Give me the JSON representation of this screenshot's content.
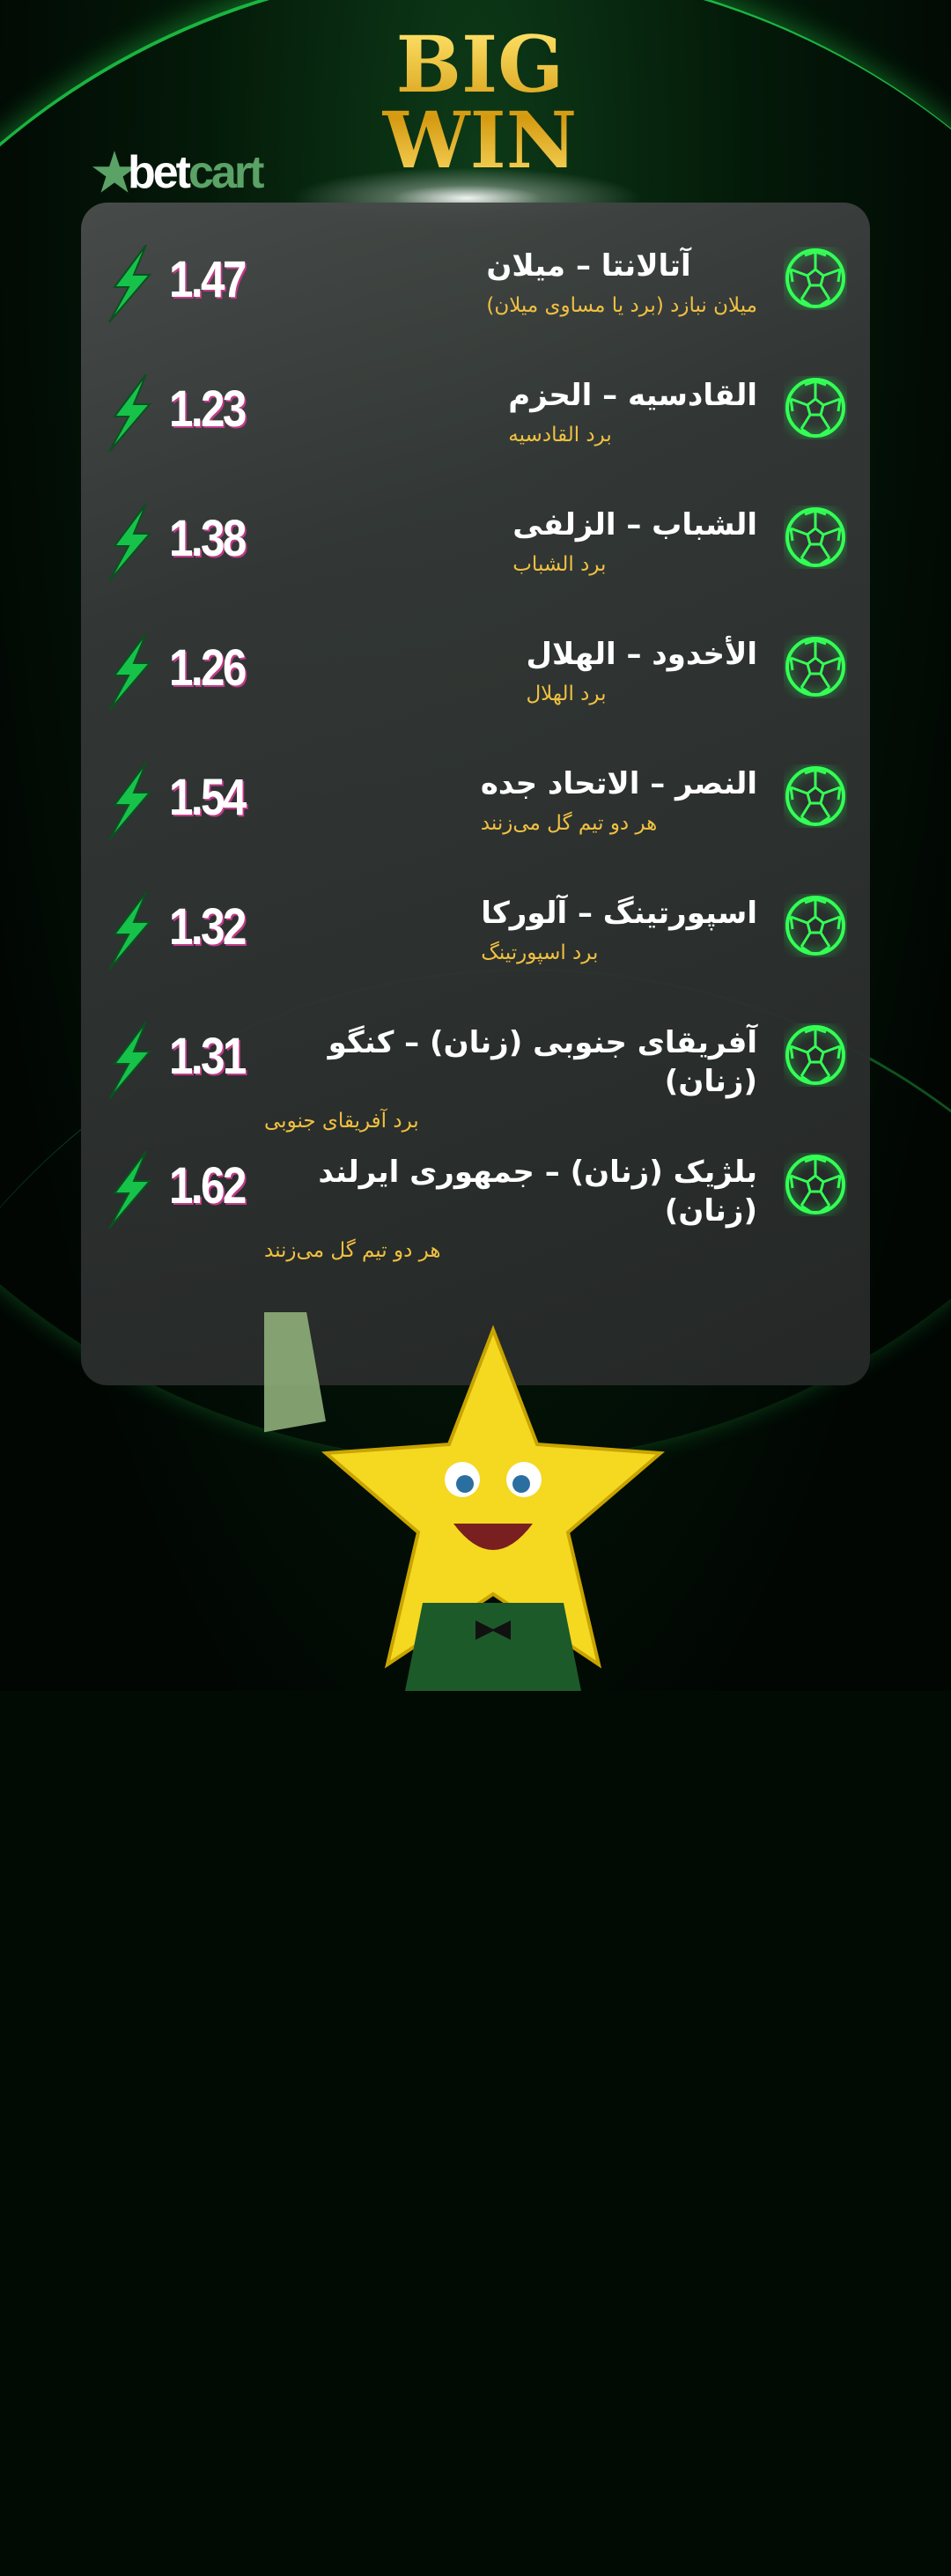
{
  "brand": {
    "logo": "betcart",
    "title_line1": "BIG",
    "title_line2": "WIN"
  },
  "colors": {
    "accent_green": "#1fd14a",
    "gold": "#f0c040",
    "card": "#343837"
  },
  "matches": [
    {
      "teams": "آتالانتا – میلان",
      "pick": "میلان نبازد (برد یا مساوی میلان)",
      "odds": "1.47"
    },
    {
      "teams": "القادسیه – الحزم",
      "pick": "برد القادسیه",
      "odds": "1.23"
    },
    {
      "teams": "الشباب – الزلفی",
      "pick": "برد الشباب",
      "odds": "1.38"
    },
    {
      "teams": "الأخدود – الهلال",
      "pick": "برد الهلال",
      "odds": "1.26"
    },
    {
      "teams": "النصر – الاتحاد جده",
      "pick": "هر دو تیم گل می‌زنند",
      "odds": "1.54"
    },
    {
      "teams": "اسپورتینگ – آلورکا",
      "pick": "برد اسپورتینگ",
      "odds": "1.32"
    },
    {
      "teams": "آفریقای جنوبی (زنان) – کنگو (زنان)",
      "pick": "برد آفریقای جنوبی",
      "odds": "1.31"
    },
    {
      "teams": "بلژیک (زنان) – جمهوری ایرلند (زنان)",
      "pick": "هر دو تیم گل می‌زنند",
      "odds": "1.62"
    }
  ],
  "icons": {
    "row_icon": "soccer-ball-icon",
    "odds_icon": "lightning-bolt-icon",
    "mascot": "star-mascot-with-money"
  }
}
